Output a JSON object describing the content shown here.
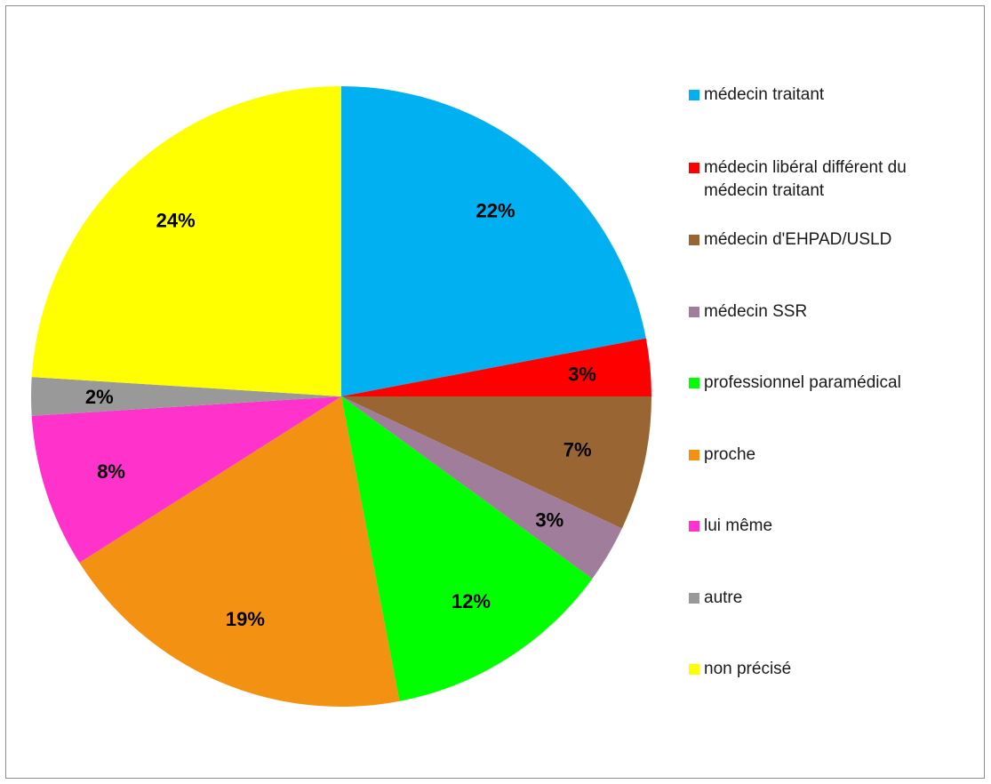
{
  "chart_data": {
    "type": "pie",
    "title": "",
    "categories": [
      "médecin traitant",
      "médecin libéral différent du médecin traitant",
      "médecin d'EHPAD/USLD",
      "médecin SSR",
      "professionnel paramédical",
      "proche",
      "lui même",
      "autre",
      "non précisé"
    ],
    "values": [
      22,
      3,
      7,
      3,
      12,
      19,
      8,
      2,
      24
    ],
    "data_labels": [
      "22%",
      "3%",
      "7%",
      "3%",
      "12%",
      "19%",
      "8%",
      "2%",
      "24%"
    ],
    "colors": [
      "#00b0f0",
      "#ff0000",
      "#996633",
      "#a07d9a",
      "#00ff00",
      "#f39212",
      "#ff33cc",
      "#999999",
      "#ffff00"
    ],
    "legend_position": "right",
    "start_angle": "12 o'clock",
    "direction": "clockwise"
  }
}
